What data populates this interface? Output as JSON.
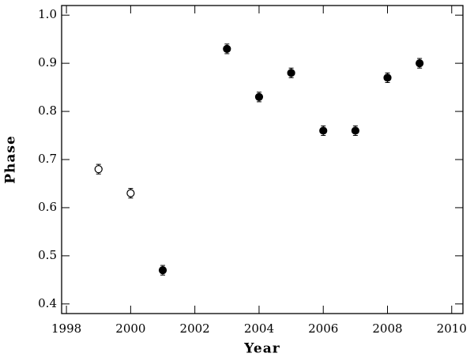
{
  "chart_data": {
    "type": "scatter",
    "x_label": "Year",
    "y_label": "Phase",
    "xlim": [
      1997.85,
      2010.35
    ],
    "ylim": [
      0.38,
      1.02
    ],
    "xticks": [
      1998,
      2000,
      2002,
      2004,
      2006,
      2008,
      2010
    ],
    "yticks": [
      0.4,
      0.5,
      0.6,
      0.7,
      0.8,
      0.9,
      {
        "value": 1.0,
        "label": "1.0"
      }
    ],
    "series": [
      {
        "marker": "open",
        "color": "#000000",
        "x": [
          1999,
          2000
        ],
        "values": [
          0.68,
          0.63
        ],
        "errors": [
          0.01,
          0.01
        ]
      },
      {
        "marker": "filled",
        "color": "#000000",
        "x": [
          2001,
          2003,
          2004,
          2005,
          2006,
          2007,
          2008,
          2009
        ],
        "values": [
          0.47,
          0.93,
          0.83,
          0.88,
          0.76,
          0.76,
          0.87,
          0.9
        ],
        "errors": [
          0.01,
          0.01,
          0.01,
          0.01,
          0.01,
          0.01,
          0.01,
          0.01
        ]
      }
    ]
  }
}
